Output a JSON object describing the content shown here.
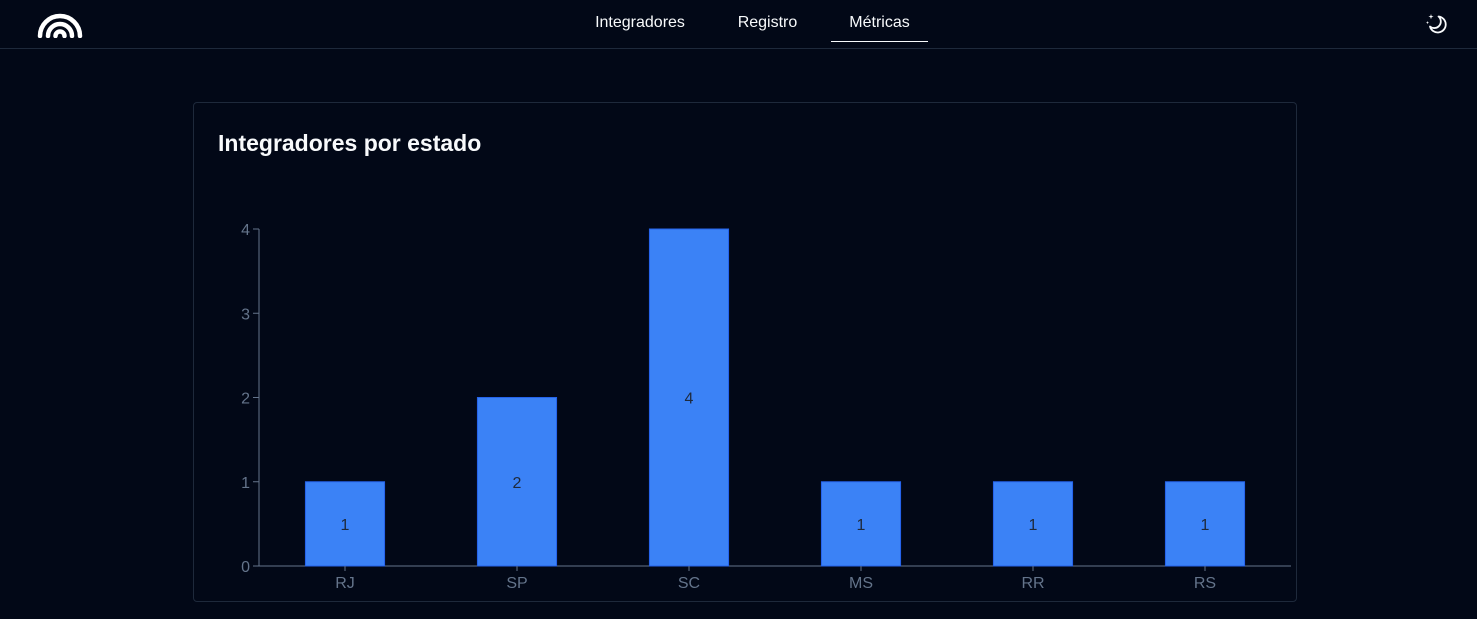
{
  "header": {
    "logo_icon": "rainbow-arcs-logo-icon",
    "nav": [
      {
        "label": "Integradores",
        "active": false
      },
      {
        "label": "Registro",
        "active": false
      },
      {
        "label": "Métricas",
        "active": true
      }
    ],
    "theme_icon": "moon-stars-icon"
  },
  "card": {
    "title": "Integradores por estado"
  },
  "chart_data": {
    "type": "bar",
    "title": "Integradores por estado",
    "categories": [
      "RJ",
      "SP",
      "SC",
      "MS",
      "RR",
      "RS"
    ],
    "values": [
      1,
      2,
      4,
      1,
      1,
      1
    ],
    "ylim": [
      0,
      4
    ],
    "yticks": [
      0,
      1,
      2,
      3,
      4
    ],
    "xlabel": "",
    "ylabel": "",
    "grid": false,
    "bar_color": "#3b82f6"
  },
  "colors": {
    "background": "#020817",
    "border": "#1e293b",
    "bar": "#3b82f6",
    "axis": "#64748b",
    "text": "#f8fafc"
  }
}
